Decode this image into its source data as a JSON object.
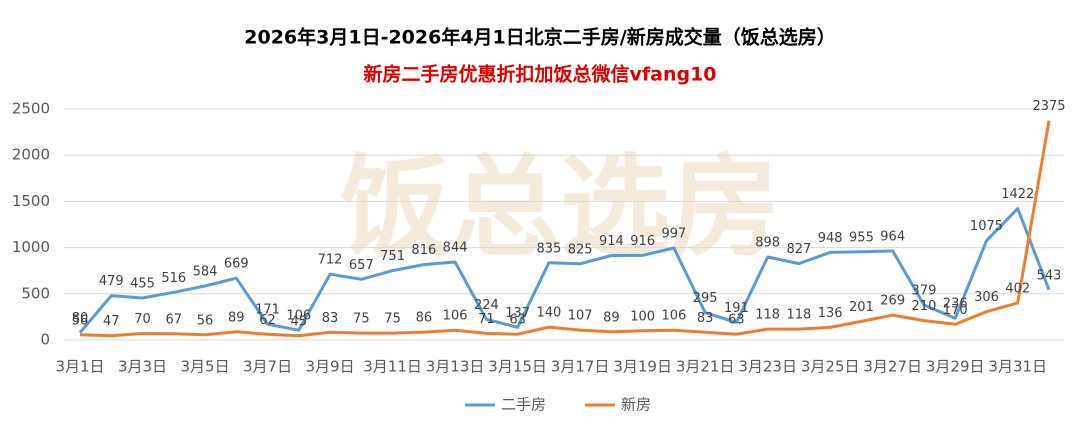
{
  "chart_data": {
    "type": "line",
    "title": "2026年3月1日-2026年4月1日北京二手房/新房成交量（饭总选房）",
    "subtitle": "新房二手房优惠折扣加饭总微信vfang10",
    "watermark": "饭总选房",
    "categories": [
      "3月1日",
      null,
      "3月3日",
      null,
      "3月5日",
      null,
      "3月7日",
      null,
      "3月9日",
      null,
      "3月11日",
      null,
      "3月13日",
      null,
      "3月15日",
      null,
      "3月17日",
      null,
      "3月19日",
      null,
      "3月21日",
      null,
      "3月23日",
      null,
      "3月25日",
      null,
      "3月27日",
      null,
      "3月29日",
      null,
      "3月31日",
      null
    ],
    "series": [
      {
        "name": "二手房",
        "color": "#5b9bd5",
        "values": [
          80,
          479,
          455,
          516,
          584,
          669,
          171,
          106,
          712,
          657,
          751,
          816,
          844,
          224,
          137,
          835,
          825,
          914,
          916,
          997,
          295,
          191,
          898,
          827,
          948,
          955,
          964,
          379,
          236,
          1075,
          1422,
          543
        ]
      },
      {
        "name": "新房",
        "color": "#ed7d31",
        "values": [
          56,
          47,
          70,
          67,
          56,
          89,
          62,
          45,
          83,
          75,
          75,
          86,
          106,
          71,
          63,
          140,
          107,
          89,
          100,
          106,
          83,
          63,
          118,
          118,
          136,
          201,
          269,
          210,
          170,
          306,
          402,
          2375
        ]
      }
    ],
    "ylim": [
      0,
      2500
    ],
    "yticks": [
      0,
      500,
      1000,
      1500,
      2000,
      2500
    ],
    "grid": true,
    "legend": "bottom"
  }
}
